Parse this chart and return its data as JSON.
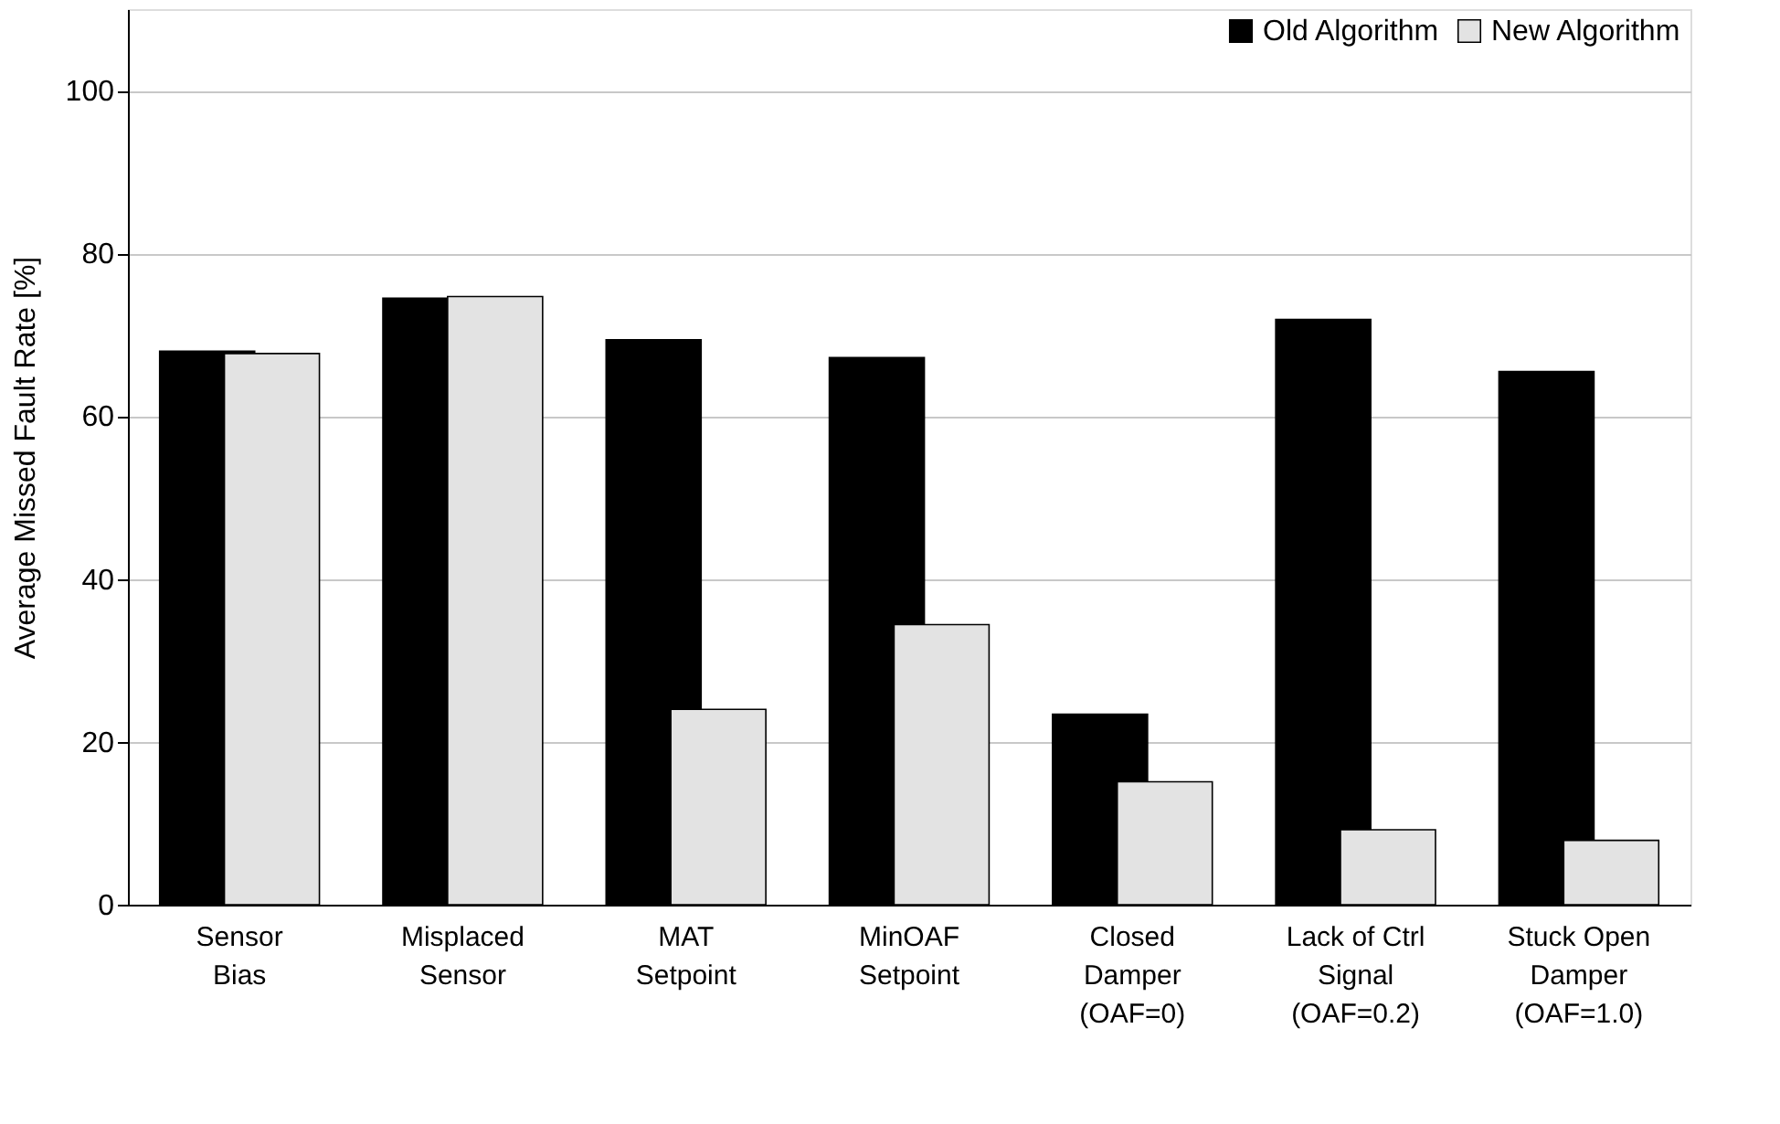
{
  "chart_data": {
    "type": "bar",
    "ylabel": "Average Missed Fault Rate [%]",
    "categories": [
      "Sensor\nBias",
      "Misplaced\nSensor",
      "MAT\nSetpoint",
      "MinOAF\nSetpoint",
      "Closed\nDamper\n(OAF=0)",
      "Lack of Ctrl\nSignal\n(OAF=0.2)",
      "Stuck Open\nDamper\n(OAF=1.0)"
    ],
    "series": [
      {
        "name": "Old Algorithm",
        "color": "#000000",
        "values": [
          68,
          74.5,
          69.4,
          67.2,
          23.4,
          71.9,
          65.5
        ]
      },
      {
        "name": "New Algorithm",
        "color": "#e3e3e3",
        "values": [
          67.7,
          74.7,
          24,
          34.4,
          15.1,
          9.2,
          7.9
        ]
      }
    ],
    "ylim": [
      0,
      110
    ],
    "yticks": [
      0,
      20,
      40,
      60,
      80,
      100
    ],
    "grid": "y",
    "legend": "top right"
  }
}
